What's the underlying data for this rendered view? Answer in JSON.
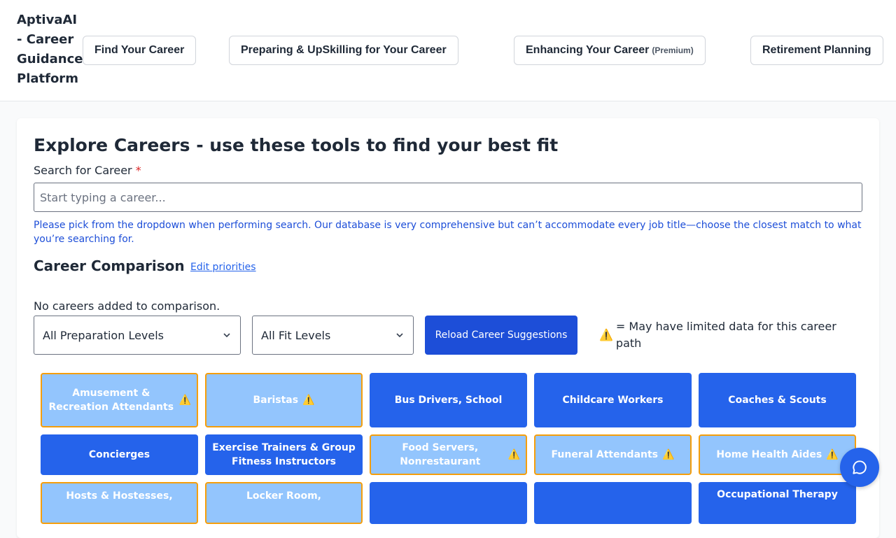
{
  "header": {
    "brand": "AptivaAI - Career Guidance Platform",
    "nav": [
      {
        "label": "Find Your Career"
      },
      {
        "label": "Preparing & UpSkilling for Your Career"
      },
      {
        "label": "Enhancing Your Career",
        "badge": "(Premium)"
      },
      {
        "label": "Retirement Planning"
      }
    ]
  },
  "main": {
    "title": "Explore Careers - use these tools to find your best fit",
    "search_label": "Search for Career",
    "required_mark": "*",
    "search_placeholder": "Start typing a career...",
    "search_value": "",
    "hint": "Please pick from the dropdown when performing search. Our database is very comprehensive but can’t accommodate every job title—choose the closest match to what you’re searching for.",
    "comparison_title": "Career Comparison",
    "edit_priorities": "Edit priorities",
    "empty_comparison": "No careers added to comparison.",
    "prep_select": "All Preparation Levels",
    "fit_select": "All Fit Levels",
    "reload": "Reload Career Suggestions",
    "legend_icon": "warning-icon",
    "legend": "= May have limited data for this career path",
    "colors": {
      "primary": "#2563eb",
      "limited": "#93c5fd",
      "warning_border": "#f59e0b"
    },
    "careers": [
      {
        "name": "Amusement & Recreation Attendants",
        "limited": true
      },
      {
        "name": "Baristas",
        "limited": true
      },
      {
        "name": "Bus Drivers, School",
        "limited": false
      },
      {
        "name": "Childcare Workers",
        "limited": false
      },
      {
        "name": "Coaches & Scouts",
        "limited": false
      },
      {
        "name": "Concierges",
        "limited": false
      },
      {
        "name": "Exercise Trainers & Group Fitness Instructors",
        "limited": false
      },
      {
        "name": "Food Servers, Nonrestaurant",
        "limited": true
      },
      {
        "name": "Funeral Attendants",
        "limited": true
      },
      {
        "name": "Home Health Aides",
        "limited": true
      },
      {
        "name": "Hosts & Hostesses,",
        "limited": true
      },
      {
        "name": "Locker Room,",
        "limited": true
      },
      {
        "name": "",
        "limited": false
      },
      {
        "name": "",
        "limited": false
      },
      {
        "name": "Occupational Therapy",
        "limited": false
      }
    ]
  },
  "chat_icon": "chat-bubble-icon"
}
